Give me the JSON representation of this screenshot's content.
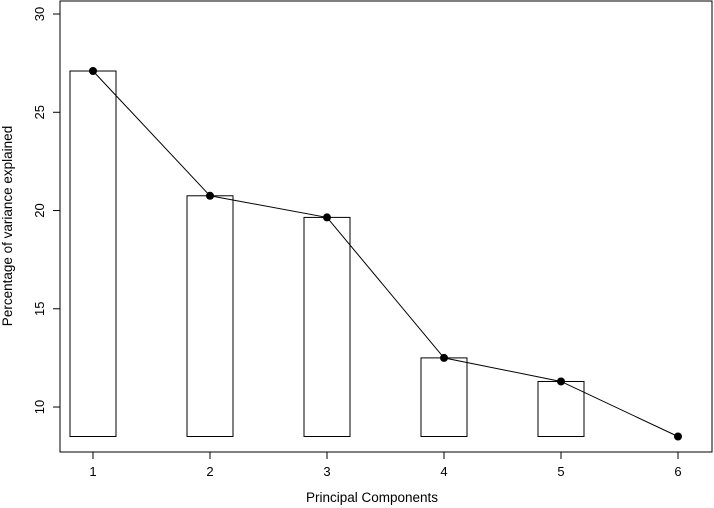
{
  "chart_data": {
    "type": "bar",
    "title": "",
    "xlabel": "Principal Components",
    "ylabel": "Percentage of variance explained",
    "categories": [
      "1",
      "2",
      "3",
      "4",
      "5",
      "6"
    ],
    "bar_values": [
      27.1,
      20.75,
      19.65,
      12.5,
      11.3,
      null
    ],
    "bar_baseline": 8.5,
    "line_values": [
      27.1,
      20.75,
      19.65,
      12.5,
      11.3,
      8.5
    ],
    "series": [
      {
        "kind": "bar",
        "values": [
          27.1,
          20.75,
          19.65,
          12.5,
          11.3,
          null
        ]
      },
      {
        "kind": "line",
        "values": [
          27.1,
          20.75,
          19.65,
          12.5,
          11.3,
          8.5
        ]
      }
    ],
    "x_ticks": [
      "1",
      "2",
      "3",
      "4",
      "5",
      "6"
    ],
    "y_ticks": [
      10,
      15,
      20,
      25,
      30
    ],
    "ylim": [
      8.5,
      30
    ],
    "grid": false,
    "legend": "none",
    "colors": {
      "bar_fill": "#ffffff",
      "bar_stroke": "#000000",
      "line": "#000000",
      "marker": "#000000"
    }
  }
}
